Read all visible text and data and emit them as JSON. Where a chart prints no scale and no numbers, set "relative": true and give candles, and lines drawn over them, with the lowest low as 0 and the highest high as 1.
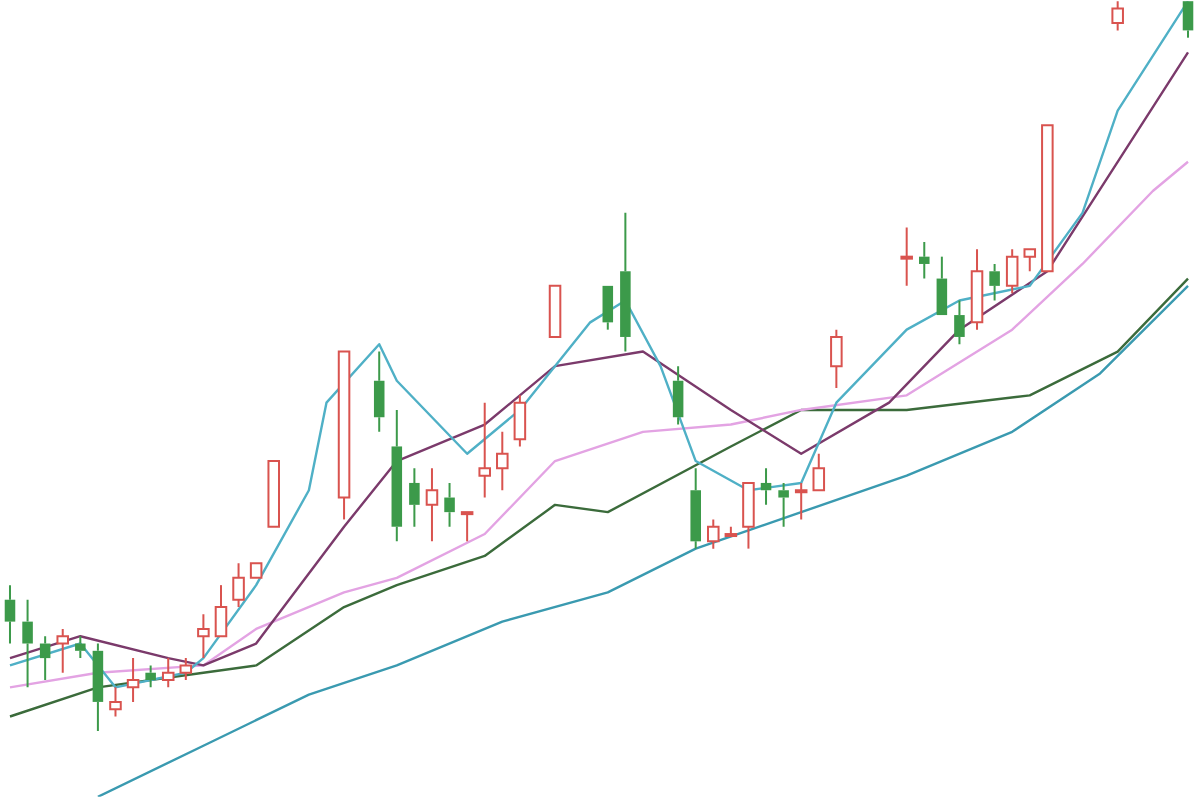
{
  "chart_data": {
    "type": "candlestick",
    "relative": true,
    "marker": "none",
    "categories": [
      null,
      null,
      null,
      null,
      null,
      null,
      null,
      null,
      null,
      null,
      null,
      null,
      null,
      null,
      null,
      null,
      null,
      null,
      null,
      null,
      null,
      null,
      null,
      null,
      null,
      null,
      null,
      null,
      null,
      null,
      null,
      null,
      null,
      null,
      null,
      null,
      null,
      null,
      null,
      null,
      null,
      null,
      null,
      null,
      null,
      null,
      null,
      null,
      null,
      null,
      null,
      null,
      null,
      null,
      null,
      null,
      null,
      null,
      null,
      null,
      null,
      null,
      null,
      null,
      null,
      null,
      null,
      null
    ],
    "ohlc": [
      [
        0.18,
        0.2,
        0.12,
        0.15
      ],
      [
        0.15,
        0.18,
        0.06,
        0.12
      ],
      [
        0.12,
        0.13,
        0.07,
        0.1
      ],
      [
        0.12,
        0.14,
        0.08,
        0.13
      ],
      [
        0.12,
        0.13,
        0.1,
        0.11
      ],
      [
        0.11,
        0.12,
        0,
        0.04
      ],
      [
        0.03,
        0.06,
        0.02,
        0.04
      ],
      [
        0.06,
        0.1,
        0.04,
        0.07
      ],
      [
        0.08,
        0.09,
        0.06,
        0.07
      ],
      [
        0.07,
        0.1,
        0.06,
        0.08
      ],
      [
        0.08,
        0.1,
        0.07,
        0.09
      ],
      [
        0.13,
        0.16,
        0.1,
        0.14
      ],
      [
        0.13,
        0.2,
        0.13,
        0.17
      ],
      [
        0.18,
        0.23,
        0.17,
        0.21
      ],
      [
        0.21,
        0.23,
        0.21,
        0.23
      ],
      [
        0.28,
        0.37,
        0.28,
        0.37
      ],
      null,
      null,
      null,
      [
        0.32,
        0.52,
        0.29,
        0.52
      ],
      null,
      [
        0.48,
        0.52,
        0.41,
        0.43
      ],
      [
        0.39,
        0.44,
        0.26,
        0.28
      ],
      [
        0.34,
        0.36,
        0.28,
        0.31
      ],
      [
        0.31,
        0.36,
        0.26,
        0.33
      ],
      [
        0.32,
        0.34,
        0.28,
        0.3
      ],
      [
        0.3,
        0.3,
        0.26,
        0.3
      ],
      [
        0.35,
        0.45,
        0.32,
        0.36
      ],
      [
        0.36,
        0.41,
        0.33,
        0.38
      ],
      [
        0.4,
        0.46,
        0.39,
        0.45
      ],
      null,
      [
        0.54,
        0.61,
        0.54,
        0.61
      ],
      null,
      null,
      [
        0.61,
        0.61,
        0.55,
        0.56
      ],
      [
        0.63,
        0.71,
        0.52,
        0.54
      ],
      null,
      null,
      [
        0.48,
        0.5,
        0.42,
        0.43
      ],
      [
        0.33,
        0.36,
        0.25,
        0.26
      ],
      [
        0.26,
        0.29,
        0.25,
        0.28
      ],
      [
        0.27,
        0.28,
        0.27,
        0.27
      ],
      [
        0.28,
        0.34,
        0.25,
        0.34
      ],
      [
        0.34,
        0.36,
        0.31,
        0.33
      ],
      [
        0.33,
        0.34,
        0.28,
        0.32
      ],
      [
        0.33,
        0.34,
        0.29,
        0.33
      ],
      [
        0.33,
        0.38,
        0.33,
        0.36
      ],
      [
        0.5,
        0.55,
        0.47,
        0.54
      ],
      null,
      null,
      null,
      [
        0.65,
        0.69,
        0.61,
        0.65
      ],
      [
        0.65,
        0.67,
        0.62,
        0.64
      ],
      [
        0.62,
        0.65,
        0.57,
        0.57
      ],
      [
        0.57,
        0.59,
        0.53,
        0.54
      ],
      [
        0.56,
        0.66,
        0.55,
        0.63
      ],
      [
        0.63,
        0.64,
        0.59,
        0.61
      ],
      [
        0.61,
        0.66,
        0.6,
        0.65
      ],
      [
        0.65,
        0.66,
        0.63,
        0.66
      ],
      [
        0.63,
        0.83,
        0.63,
        0.83
      ],
      null,
      null,
      null,
      [
        0.97,
        1,
        0.96,
        0.99
      ],
      null,
      null,
      null,
      [
        1,
        1,
        0.95,
        0.96
      ]
    ],
    "series": [
      {
        "type": "line",
        "color": "#4fb0c6",
        "values": [
          0.09,
          null,
          null,
          null,
          0.12,
          null,
          0.06,
          null,
          null,
          null,
          0.08,
          0.1,
          null,
          null,
          0.2,
          null,
          null,
          0.33,
          0.45,
          null,
          null,
          0.53,
          0.48,
          null,
          null,
          null,
          0.38,
          null,
          null,
          0.44,
          null,
          null,
          null,
          0.56,
          null,
          0.59,
          null,
          0.5,
          null,
          0.37,
          null,
          null,
          0.33,
          null,
          null,
          0.34,
          null,
          0.45,
          null,
          null,
          null,
          0.55,
          null,
          null,
          0.59,
          null,
          null,
          null,
          0.61,
          null,
          null,
          0.71,
          null,
          0.85,
          null,
          null,
          null,
          1.0
        ]
      },
      {
        "type": "line",
        "color": "#7b3a6b",
        "values": [
          0.1,
          null,
          null,
          null,
          0.13,
          null,
          null,
          null,
          null,
          0.1,
          null,
          0.09,
          null,
          null,
          0.12,
          null,
          null,
          null,
          null,
          0.28,
          null,
          null,
          0.37,
          null,
          null,
          null,
          null,
          0.42,
          null,
          null,
          null,
          0.5,
          null,
          null,
          null,
          null,
          0.52,
          null,
          null,
          null,
          null,
          0.44,
          null,
          null,
          null,
          0.38,
          null,
          null,
          null,
          null,
          0.45,
          null,
          null,
          null,
          0.55,
          null,
          null,
          null,
          null,
          0.63,
          null,
          null,
          null,
          0.78,
          null,
          null,
          null,
          0.93
        ]
      },
      {
        "type": "line",
        "color": "#e3a3e3",
        "values": [
          0.06,
          null,
          null,
          null,
          null,
          0.08,
          null,
          null,
          null,
          null,
          null,
          0.09,
          null,
          null,
          0.14,
          null,
          null,
          null,
          null,
          0.19,
          null,
          null,
          0.21,
          null,
          null,
          null,
          null,
          0.27,
          null,
          null,
          null,
          0.37,
          null,
          null,
          null,
          null,
          0.41,
          null,
          null,
          null,
          null,
          0.42,
          null,
          null,
          null,
          0.44,
          null,
          null,
          null,
          null,
          null,
          0.46,
          null,
          null,
          null,
          null,
          null,
          0.55,
          null,
          null,
          null,
          0.64,
          null,
          null,
          null,
          0.74,
          null,
          0.78
        ]
      },
      {
        "type": "line",
        "color": "#3b6b3b",
        "values": [
          0.02,
          null,
          null,
          null,
          null,
          0.06,
          null,
          null,
          null,
          null,
          null,
          0.08,
          null,
          null,
          0.09,
          null,
          null,
          null,
          null,
          0.17,
          null,
          null,
          0.2,
          null,
          null,
          null,
          null,
          0.24,
          null,
          null,
          null,
          0.31,
          null,
          null,
          0.3,
          null,
          null,
          null,
          null,
          null,
          null,
          0.39,
          null,
          null,
          null,
          0.44,
          null,
          null,
          null,
          null,
          null,
          0.44,
          null,
          null,
          null,
          null,
          null,
          null,
          0.46,
          null,
          null,
          null,
          null,
          0.52,
          null,
          null,
          null,
          0.62
        ]
      },
      {
        "type": "line",
        "color": "#3a9ab0",
        "values": [
          null,
          null,
          null,
          null,
          null,
          -0.09,
          null,
          null,
          null,
          null,
          null,
          -0.02,
          null,
          null,
          null,
          null,
          null,
          0.05,
          null,
          null,
          null,
          null,
          0.09,
          null,
          null,
          null,
          null,
          null,
          0.15,
          null,
          null,
          null,
          null,
          null,
          0.19,
          null,
          null,
          null,
          null,
          0.25,
          null,
          null,
          null,
          null,
          null,
          0.3,
          null,
          null,
          null,
          null,
          null,
          0.35,
          null,
          null,
          null,
          null,
          null,
          0.41,
          null,
          null,
          null,
          null,
          0.49,
          null,
          null,
          null,
          null,
          0.61
        ]
      }
    ]
  }
}
